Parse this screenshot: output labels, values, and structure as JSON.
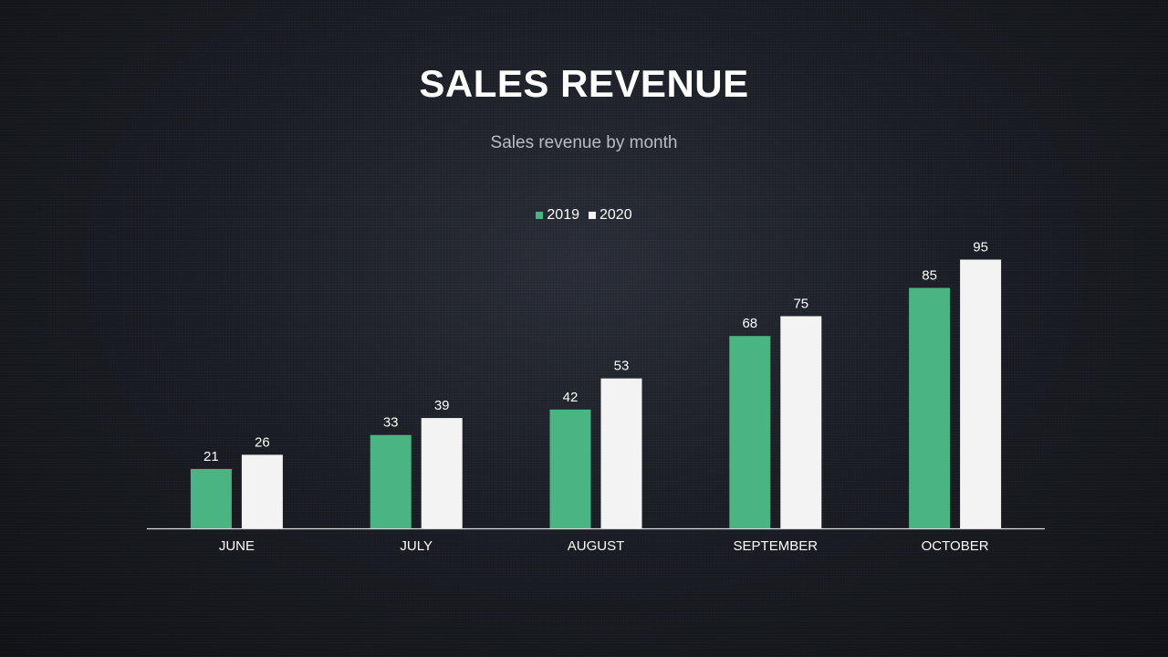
{
  "title": "SALES REVENUE",
  "subtitle": "Sales revenue by month",
  "colors": {
    "series_2019": "#48b583",
    "series_2020": "#f3f3f4",
    "axis": "#d9dadd",
    "label": "#ffffff"
  },
  "chart_data": {
    "type": "bar",
    "title": "SALES REVENUE",
    "subtitle": "Sales revenue by month",
    "categories": [
      "JUNE",
      "JULY",
      "AUGUST",
      "SEPTEMBER",
      "OCTOBER"
    ],
    "series": [
      {
        "name": "2019",
        "values": [
          21,
          33,
          42,
          68,
          85
        ]
      },
      {
        "name": "2020",
        "values": [
          26,
          39,
          53,
          75,
          95
        ]
      }
    ],
    "xlabel": "",
    "ylabel": "",
    "ylim": [
      0,
      100
    ],
    "grid": false,
    "legend": "top-center",
    "data_labels": true
  }
}
